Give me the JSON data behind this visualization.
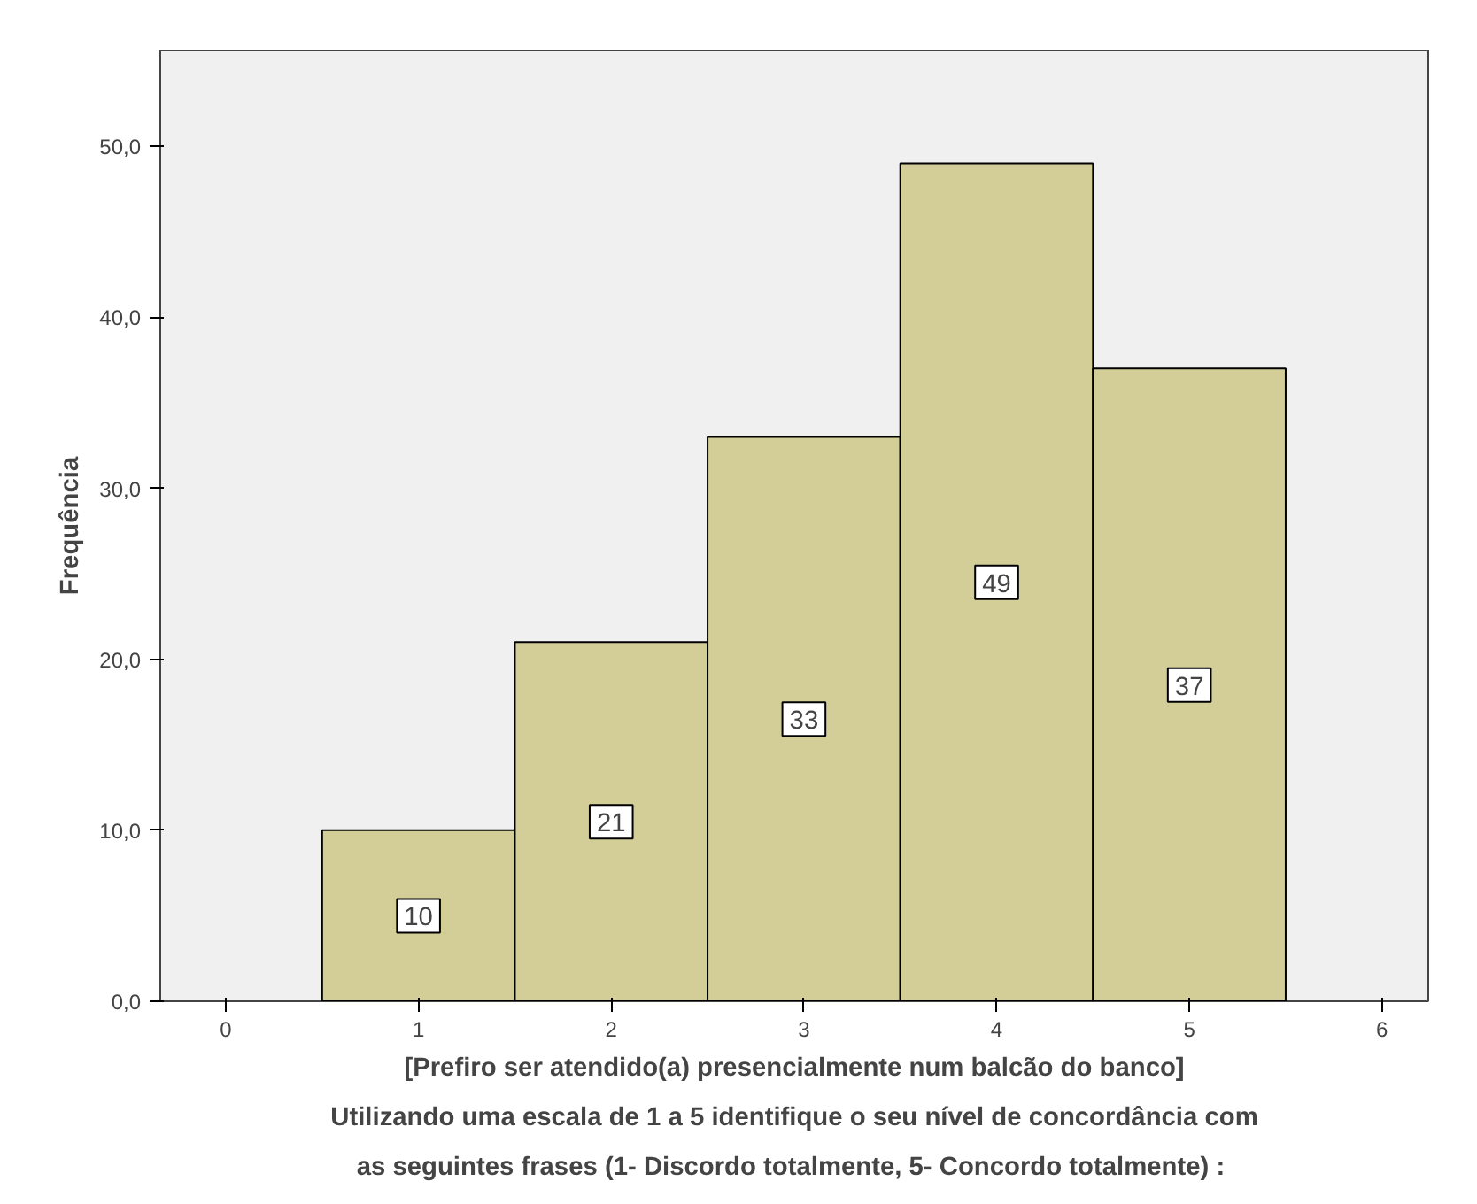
{
  "chart_data": {
    "type": "histogram",
    "ylabel": "Frequência",
    "xlabel": "[Prefiro ser atendido(a) presencialmente num balcão do banco]\nUtilizando uma escala de 1 a 5 identifique o seu nível de concordância com\nas seguintes frases  (1- Discordo totalmente, 5- Concordo totalmente) :",
    "bins": [
      0.5,
      1.5,
      2.5,
      3.5,
      4.5,
      5.5
    ],
    "values": [
      10,
      21,
      33,
      49,
      37
    ],
    "color": "#d3ce97",
    "data_labels": true,
    "xlim": [
      -0.34,
      6.24
    ],
    "xticks": [
      0,
      1,
      2,
      3,
      4,
      5,
      6
    ],
    "ylim": [
      0,
      55.6
    ],
    "yticks": [
      {
        "value": 0,
        "label": "0,0"
      },
      {
        "value": 10,
        "label": "10,0"
      },
      {
        "value": 20,
        "label": "20,0"
      },
      {
        "value": 30,
        "label": "30,0"
      },
      {
        "value": 40,
        "label": "40,0"
      },
      {
        "value": 50,
        "label": "50,0"
      }
    ],
    "grid": false
  }
}
